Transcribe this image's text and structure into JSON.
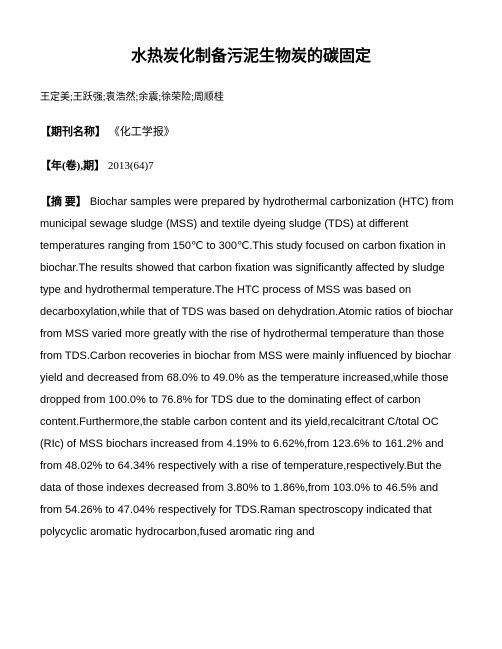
{
  "title": "水热炭化制备污泥生物炭的碳固定",
  "authors": "王定美;王跃强;袁浩然;余震;徐荣险;周顺桂",
  "journal_label": "【期刊名称】",
  "journal_value": "《化工学报》",
  "year_label": "【年(卷),期】",
  "year_value": "2013(64)7",
  "abstract_label": "【摘 要】",
  "abstract_text": "Biochar samples were prepared by hydrothermal carbonization (HTC) from municipal sewage sludge (MSS) and textile dyeing sludge (TDS) at different temperatures ranging from 150℃ to 300℃.This study focused on carbon fixation in biochar.The results showed that carbon fixation was significantly affected by sludge type and hydrothermal temperature.The HTC process of MSS was based on decarboxylation,while that of TDS was based on dehydration.Atomic ratios of biochar from MSS varied more greatly with the rise of hydrothermal temperature than those from TDS.Carbon recoveries in biochar from MSS were mainly influenced by biochar yield and decreased from 68.0% to 49.0% as the temperature increased,while those dropped from 100.0% to 76.8% for TDS due to the dominating effect of carbon content.Furthermore,the stable carbon content and its yield,recalcitrant C/total OC (RIc) of MSS biochars increased from 4.19% to 6.62%,from 123.6% to 161.2% and from 48.02% to 64.34% respectively with a rise of temperature,respectively.But the data of those indexes decreased from 3.80% to 1.86%,from 103.0% to 46.5% and from 54.26% to 47.04% respectively for TDS.Raman spectroscopy indicated that polycyclic aromatic hydrocarbon,fused aromatic ring and"
}
